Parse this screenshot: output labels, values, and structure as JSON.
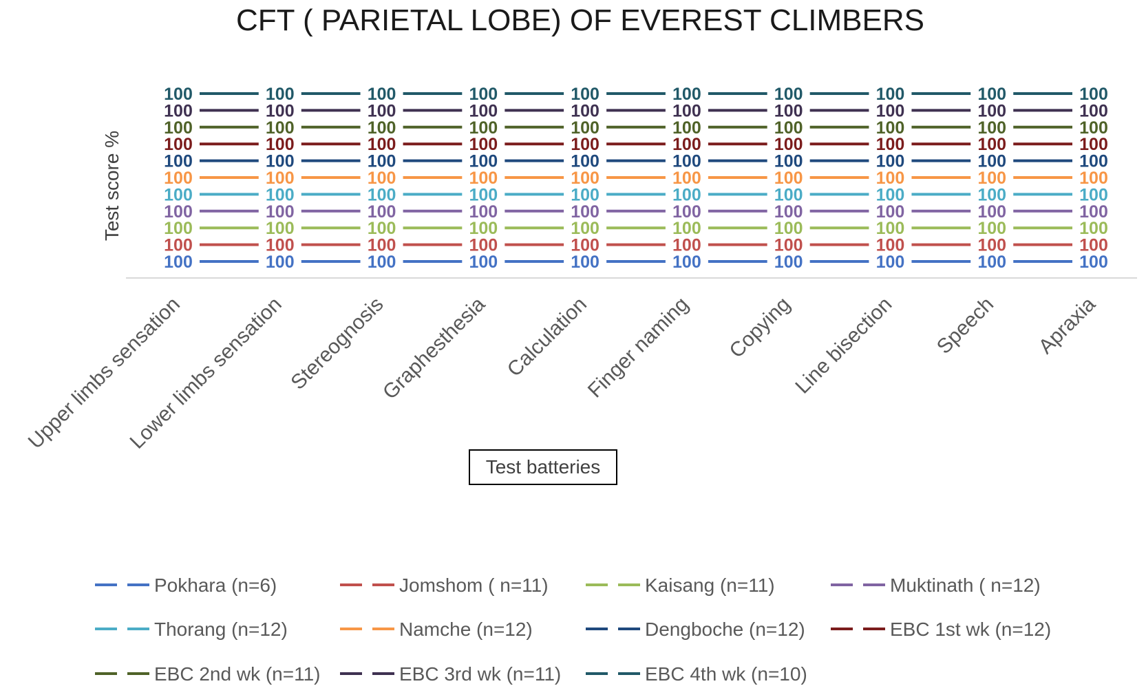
{
  "chart_data": {
    "type": "line",
    "title": "CFT ( PARIETAL LOBE) OF EVEREST CLIMBERS",
    "ylabel": "Test score %",
    "xlabel": "Test batteries",
    "categories": [
      "Upper limbs sensation",
      "Lower limbs sensation",
      "Stereognosis",
      "Graphesthesia",
      "Calculation",
      "Finger naming",
      "Copying",
      "Line bisection",
      "Speech",
      "Apraxia"
    ],
    "legend_position": "bottom",
    "series": [
      {
        "name": "Pokhara (n=6)",
        "color": "#4472C4",
        "values": [
          100,
          100,
          100,
          100,
          100,
          100,
          100,
          100,
          100,
          100
        ]
      },
      {
        "name": "Jomshom ( n=11)",
        "color": "#C0504D",
        "values": [
          100,
          100,
          100,
          100,
          100,
          100,
          100,
          100,
          100,
          100
        ]
      },
      {
        "name": "Kaisang (n=11)",
        "color": "#9BBB59",
        "values": [
          100,
          100,
          100,
          100,
          100,
          100,
          100,
          100,
          100,
          100
        ]
      },
      {
        "name": "Muktinath ( n=12)",
        "color": "#8064A2",
        "values": [
          100,
          100,
          100,
          100,
          100,
          100,
          100,
          100,
          100,
          100
        ]
      },
      {
        "name": "Thorang (n=12)",
        "color": "#4BACC6",
        "values": [
          100,
          100,
          100,
          100,
          100,
          100,
          100,
          100,
          100,
          100
        ]
      },
      {
        "name": "Namche (n=12)",
        "color": "#F79646",
        "values": [
          100,
          100,
          100,
          100,
          100,
          100,
          100,
          100,
          100,
          100
        ]
      },
      {
        "name": "Dengboche (n=12)",
        "color": "#1F497D",
        "values": [
          100,
          100,
          100,
          100,
          100,
          100,
          100,
          100,
          100,
          100
        ]
      },
      {
        "name": "EBC 1st wk (n=12)",
        "color": "#7B1C1C",
        "values": [
          100,
          100,
          100,
          100,
          100,
          100,
          100,
          100,
          100,
          100
        ]
      },
      {
        "name": "EBC 2nd wk (n=11)",
        "color": "#4F6228",
        "values": [
          100,
          100,
          100,
          100,
          100,
          100,
          100,
          100,
          100,
          100
        ]
      },
      {
        "name": "EBC 3rd wk (n=11)",
        "color": "#3F3151",
        "values": [
          100,
          100,
          100,
          100,
          100,
          100,
          100,
          100,
          100,
          100
        ]
      },
      {
        "name": "EBC 4th wk (n=10)",
        "color": "#215968",
        "values": [
          100,
          100,
          100,
          100,
          100,
          100,
          100,
          100,
          100,
          100
        ]
      }
    ]
  }
}
